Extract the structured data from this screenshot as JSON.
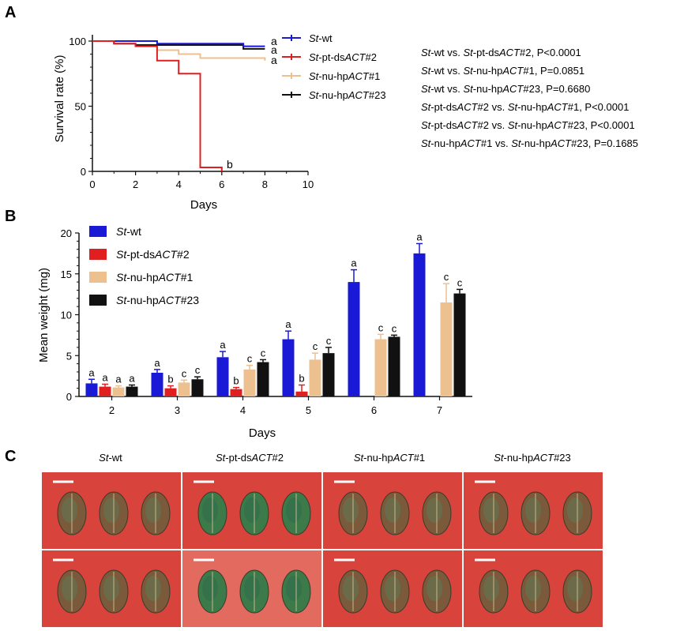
{
  "panels": {
    "a": "A",
    "b": "B",
    "c": "C"
  },
  "colors": {
    "wt": "#1a1ad6",
    "ds": "#e02020",
    "hp1": "#ecc08f",
    "hp23": "#111111",
    "photo_bg": "#d8433c",
    "leaf_green": "#3c7a4a",
    "leaf_brown": "#7a5a3a"
  },
  "chart_data": [
    {
      "type": "line",
      "panel": "A",
      "step": true,
      "xlabel": "Days",
      "ylabel": "Survival rate (%)",
      "xlim": [
        0,
        10
      ],
      "ylim": [
        0,
        100
      ],
      "xticks": [
        0,
        2,
        4,
        6,
        8,
        10
      ],
      "yticks": [
        0,
        50,
        100
      ],
      "series": [
        {
          "key": "wt",
          "name": "St-wt",
          "name_ital": "St",
          "name_rest": "-wt",
          "color_key": "wt",
          "x": [
            0,
            3,
            7,
            8
          ],
          "y": [
            100,
            98,
            96,
            96
          ],
          "letter": "a"
        },
        {
          "key": "ds",
          "name": "St-pt-dsACT#2",
          "name_ital": "St",
          "name_rest": "-pt-ds",
          "name_gene": "ACT",
          "name_tail": "#2",
          "color_key": "ds",
          "x": [
            0,
            1,
            2,
            3,
            4,
            5,
            6
          ],
          "y": [
            100,
            98,
            96,
            85,
            75,
            3,
            0
          ],
          "letter": "b"
        },
        {
          "key": "hp1",
          "name": "St-nu-hpACT#1",
          "name_ital": "St",
          "name_rest": "-nu-hp",
          "name_gene": "ACT",
          "name_tail": "#1",
          "color_key": "hp1",
          "x": [
            0,
            3,
            4,
            5,
            8
          ],
          "y": [
            100,
            93,
            90,
            87,
            85
          ],
          "letter": "a"
        },
        {
          "key": "hp23",
          "name": "St-nu-hpACT#23",
          "name_ital": "St",
          "name_rest": "-nu-hp",
          "name_gene": "ACT",
          "name_tail": "#23",
          "color_key": "hp23",
          "x": [
            0,
            1,
            2,
            3,
            7,
            8
          ],
          "y": [
            100,
            98,
            97,
            97,
            94,
            94
          ],
          "letter": "a"
        }
      ],
      "stats": [
        {
          "a_ital": "St",
          "a_rest": "-wt",
          "a_gene": "",
          "a_tail": "",
          "b_ital": "St",
          "b_rest": "-pt-ds",
          "b_gene": "ACT",
          "b_tail": "#2",
          "p": ", P<0.0001"
        },
        {
          "a_ital": "St",
          "a_rest": "-wt",
          "a_gene": "",
          "a_tail": "",
          "b_ital": "St",
          "b_rest": "-nu-hp",
          "b_gene": "ACT",
          "b_tail": "#1",
          "p": ", P=0.0851"
        },
        {
          "a_ital": "St",
          "a_rest": "-wt",
          "a_gene": "",
          "a_tail": "",
          "b_ital": "St",
          "b_rest": "-nu-hp",
          "b_gene": "ACT",
          "b_tail": "#23",
          "p": ", P=0.6680"
        },
        {
          "a_ital": "St",
          "a_rest": "-pt-ds",
          "a_gene": "ACT",
          "a_tail": "#2",
          "b_ital": "St",
          "b_rest": "-nu-hp",
          "b_gene": "ACT",
          "b_tail": "#1",
          "p": ", P<0.0001"
        },
        {
          "a_ital": "St",
          "a_rest": "-pt-ds",
          "a_gene": "ACT",
          "a_tail": "#2",
          "b_ital": "St",
          "b_rest": "-nu-hp",
          "b_gene": "ACT",
          "b_tail": "#23",
          "p": ", P<0.0001"
        },
        {
          "a_ital": "St",
          "a_rest": "-nu-hp",
          "a_gene": "ACT",
          "a_tail": "#1",
          "b_ital": "St",
          "b_rest": "-nu-hp",
          "b_gene": "ACT",
          "b_tail": "#23",
          "p": ", P=0.1685"
        }
      ],
      "stats_vs": " vs. "
    },
    {
      "type": "bar",
      "panel": "B",
      "xlabel": "Days",
      "ylabel": "Mean weight (mg)",
      "ylim": [
        0,
        20
      ],
      "yticks": [
        0,
        5,
        10,
        15,
        20
      ],
      "categories": [
        "2",
        "3",
        "4",
        "5",
        "6",
        "7"
      ],
      "series": [
        {
          "key": "wt",
          "name": "St-wt",
          "name_ital": "St",
          "name_rest": "-wt",
          "color_key": "wt",
          "values": [
            1.6,
            2.9,
            4.8,
            7.0,
            14.0,
            17.5
          ],
          "errors": [
            0.5,
            0.4,
            0.7,
            1.0,
            1.5,
            1.2
          ],
          "letters": [
            "a",
            "a",
            "a",
            "a",
            "a",
            "a"
          ]
        },
        {
          "key": "ds",
          "name": "St-pt-dsACT#2",
          "name_ital": "St",
          "name_rest": "-pt-ds",
          "name_gene": "ACT",
          "name_tail": "#2",
          "color_key": "ds",
          "values": [
            1.2,
            1.0,
            0.9,
            0.6,
            null,
            null
          ],
          "errors": [
            0.3,
            0.3,
            0.2,
            0.8,
            null,
            null
          ],
          "letters": [
            "a",
            "b",
            "b",
            "b",
            "",
            ""
          ]
        },
        {
          "key": "hp1",
          "name": "St-nu-hpACT#1",
          "name_ital": "St",
          "name_rest": "-nu-hp",
          "name_gene": "ACT",
          "name_tail": "#1",
          "color_key": "hp1",
          "values": [
            1.1,
            1.7,
            3.3,
            4.5,
            7.0,
            11.5
          ],
          "errors": [
            0.2,
            0.3,
            0.5,
            0.8,
            0.6,
            2.3
          ],
          "letters": [
            "a",
            "c",
            "c",
            "c",
            "c",
            "c"
          ]
        },
        {
          "key": "hp23",
          "name": "St-nu-hpACT#23",
          "name_ital": "St",
          "name_rest": "-nu-hp",
          "name_gene": "ACT",
          "name_tail": "#23",
          "color_key": "hp23",
          "values": [
            1.2,
            2.1,
            4.2,
            5.3,
            7.3,
            12.6
          ],
          "errors": [
            0.2,
            0.3,
            0.3,
            0.7,
            0.2,
            0.5
          ],
          "letters": [
            "a",
            "c",
            "c",
            "c",
            "c",
            "c"
          ]
        }
      ]
    }
  ],
  "panel_c": {
    "groups": [
      {
        "ital": "St",
        "rest": "-wt",
        "gene": "",
        "tail": "",
        "leaf_tone": "mixed"
      },
      {
        "ital": "St",
        "rest": "-pt-ds",
        "gene": "ACT",
        "tail": "#2",
        "leaf_tone": "green"
      },
      {
        "ital": "St",
        "rest": "-nu-hp",
        "gene": "ACT",
        "tail": "#1",
        "leaf_tone": "mixed"
      },
      {
        "ital": "St",
        "rest": "-nu-hp",
        "gene": "ACT",
        "tail": "#23",
        "leaf_tone": "mixed"
      }
    ],
    "rows": 2,
    "leaves_per_photo": 3
  }
}
